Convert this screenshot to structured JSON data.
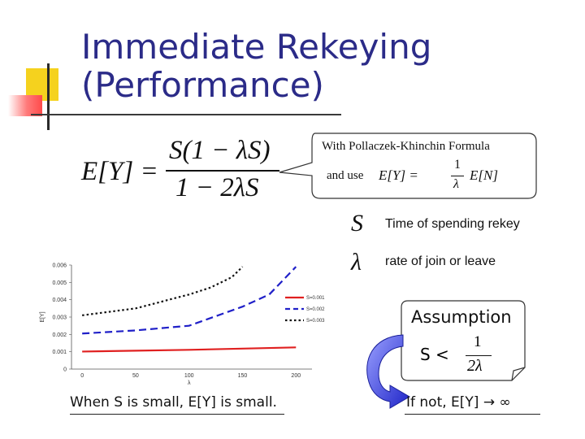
{
  "slide": {
    "title_line1": "Immediate Rekeying",
    "title_line2": "(Performance)"
  },
  "formula_main": {
    "lhs": "E[Y] =",
    "numerator": "S(1 − λS)",
    "denominator": "1 − 2λS"
  },
  "callout": {
    "line1": "With Pollaczek-Khinchin Formula",
    "line2": "and use",
    "formula_lhs": "E[Y] =",
    "formula_num": "1",
    "formula_den": "λ",
    "formula_rhs": "E[N]"
  },
  "definitions": [
    {
      "symbol": "S",
      "text": "Time of spending rekey"
    },
    {
      "symbol": "λ",
      "text": "rate of join or leave"
    }
  ],
  "assumption": {
    "label": "Assumption",
    "lhs": "S <",
    "num": "1",
    "den": "2λ"
  },
  "captions": {
    "left": "When S is small, E[Y] is small.",
    "right": "If not, E[Y] → ∞"
  },
  "chart_data": {
    "type": "line",
    "xlabel": "λ",
    "ylabel": "E[Y]",
    "xlim": [
      -10,
      215
    ],
    "ylim": [
      0,
      0.006
    ],
    "xticks": [
      "0",
      "50",
      "100",
      "150",
      "200"
    ],
    "yticks": [
      "0",
      "0.001",
      "0.002",
      "0.003",
      "0.004",
      "0.005",
      "0.006"
    ],
    "legend_position": "right",
    "series": [
      {
        "name": "S=0.001",
        "color": "#e02020",
        "dash": "solid",
        "x": [
          0,
          50,
          100,
          150,
          200
        ],
        "y": [
          0.00101,
          0.00106,
          0.00111,
          0.00118,
          0.00125
        ]
      },
      {
        "name": "S=0.002",
        "color": "#2020c8",
        "dash": "dashed",
        "x": [
          0,
          50,
          100,
          150,
          175,
          200
        ],
        "y": [
          0.00205,
          0.00223,
          0.0025,
          0.0036,
          0.0043,
          0.0059
        ]
      },
      {
        "name": "S=0.003",
        "color": "#111111",
        "dash": "dotted",
        "x": [
          0,
          50,
          100,
          120,
          140,
          150
        ],
        "y": [
          0.0031,
          0.0035,
          0.0043,
          0.0047,
          0.0053,
          0.0059
        ]
      }
    ]
  }
}
